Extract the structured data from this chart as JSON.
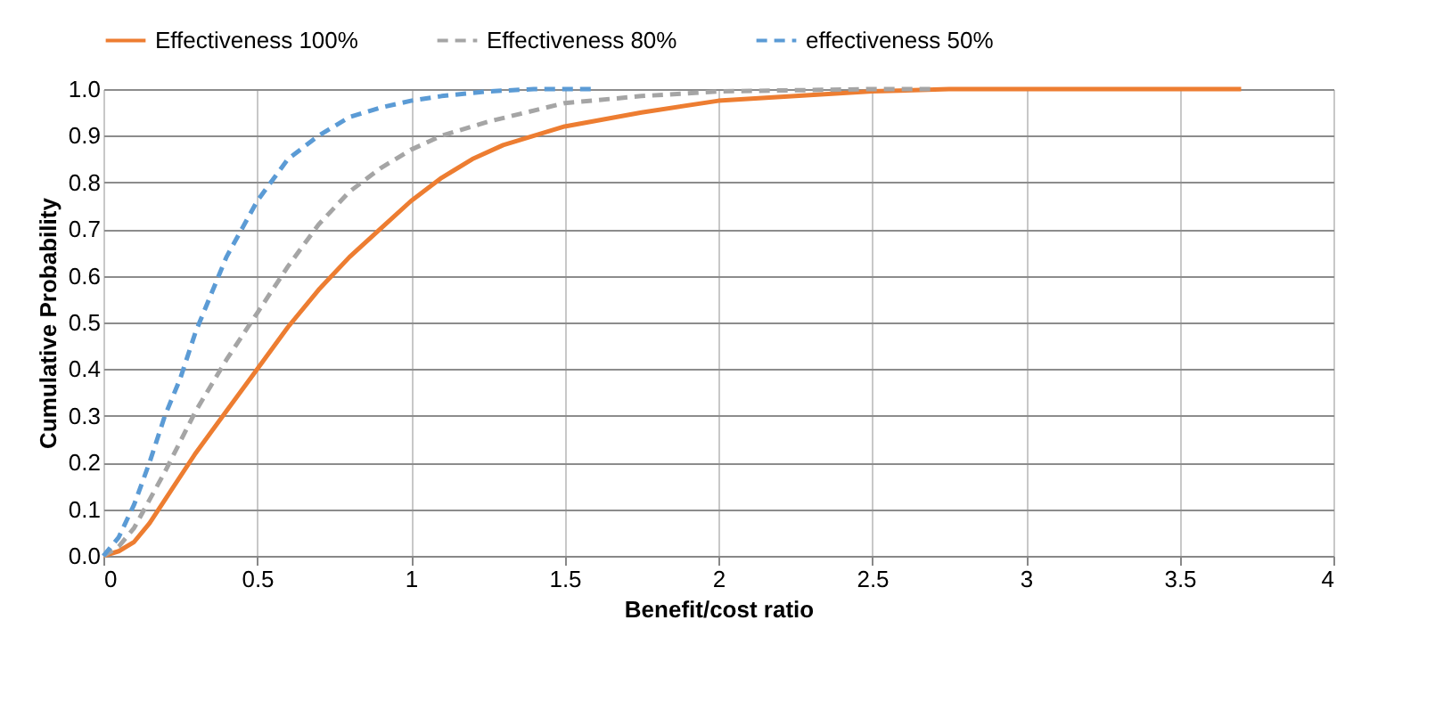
{
  "chart_data": {
    "type": "line",
    "xlabel": "Benefit/cost ratio",
    "ylabel": "Cumulative Probability",
    "xlim": [
      0,
      4
    ],
    "xticks": [
      0,
      0.5,
      1,
      1.5,
      2,
      2.5,
      3,
      3.5,
      4
    ],
    "ylim": [
      0,
      1
    ],
    "yticks": [
      {
        "value": 0,
        "label": "0.0"
      },
      {
        "value": 0.1,
        "label": "0.1"
      },
      {
        "value": 0.2,
        "label": "0.2"
      },
      {
        "value": 0.3,
        "label": "0.3"
      },
      {
        "value": 0.4,
        "label": "0.4"
      },
      {
        "value": 0.5,
        "label": "0.5"
      },
      {
        "value": 0.6,
        "label": "0.6"
      },
      {
        "value": 0.7,
        "label": "0.7"
      },
      {
        "value": 0.8,
        "label": "0.8"
      },
      {
        "value": 0.9,
        "label": "0.9"
      },
      {
        "value": 1,
        "label": "1.0"
      }
    ],
    "grid": true,
    "legend": "top",
    "marker": "none",
    "series": [
      {
        "name": "Effectiveness 100%",
        "color": "#ed7d31",
        "line_style": "solid",
        "x": [
          0,
          0.05,
          0.1,
          0.15,
          0.2,
          0.3,
          0.4,
          0.5,
          0.6,
          0.7,
          0.8,
          0.9,
          1,
          1.1,
          1.2,
          1.3,
          1.4,
          1.5,
          1.75,
          2,
          2.25,
          2.5,
          2.75,
          3,
          3.7
        ],
        "values": [
          0,
          0.01,
          0.03,
          0.07,
          0.12,
          0.22,
          0.31,
          0.4,
          0.49,
          0.57,
          0.64,
          0.7,
          0.76,
          0.81,
          0.85,
          0.88,
          0.9,
          0.92,
          0.95,
          0.975,
          0.985,
          0.995,
          1,
          1,
          1
        ]
      },
      {
        "name": "Effectiveness 80%",
        "color": "#a5a5a5",
        "line_style": "dashed",
        "x": [
          0,
          0.05,
          0.1,
          0.2,
          0.3,
          0.4,
          0.5,
          0.6,
          0.7,
          0.8,
          0.9,
          1,
          1.1,
          1.25,
          1.5,
          1.75,
          2,
          2.5,
          2.7
        ],
        "values": [
          0,
          0.02,
          0.06,
          0.18,
          0.31,
          0.42,
          0.52,
          0.62,
          0.71,
          0.78,
          0.83,
          0.87,
          0.9,
          0.93,
          0.97,
          0.985,
          0.995,
          1,
          1
        ]
      },
      {
        "name": "effectiveness 50%",
        "color": "#5b9bd5",
        "line_style": "dashed",
        "x": [
          0,
          0.05,
          0.1,
          0.15,
          0.2,
          0.25,
          0.3,
          0.4,
          0.5,
          0.6,
          0.7,
          0.8,
          0.9,
          1,
          1.1,
          1.25,
          1.4,
          1.6
        ],
        "values": [
          0,
          0.04,
          0.11,
          0.2,
          0.3,
          0.38,
          0.48,
          0.64,
          0.76,
          0.85,
          0.9,
          0.94,
          0.96,
          0.975,
          0.985,
          0.995,
          1,
          1
        ]
      }
    ]
  }
}
